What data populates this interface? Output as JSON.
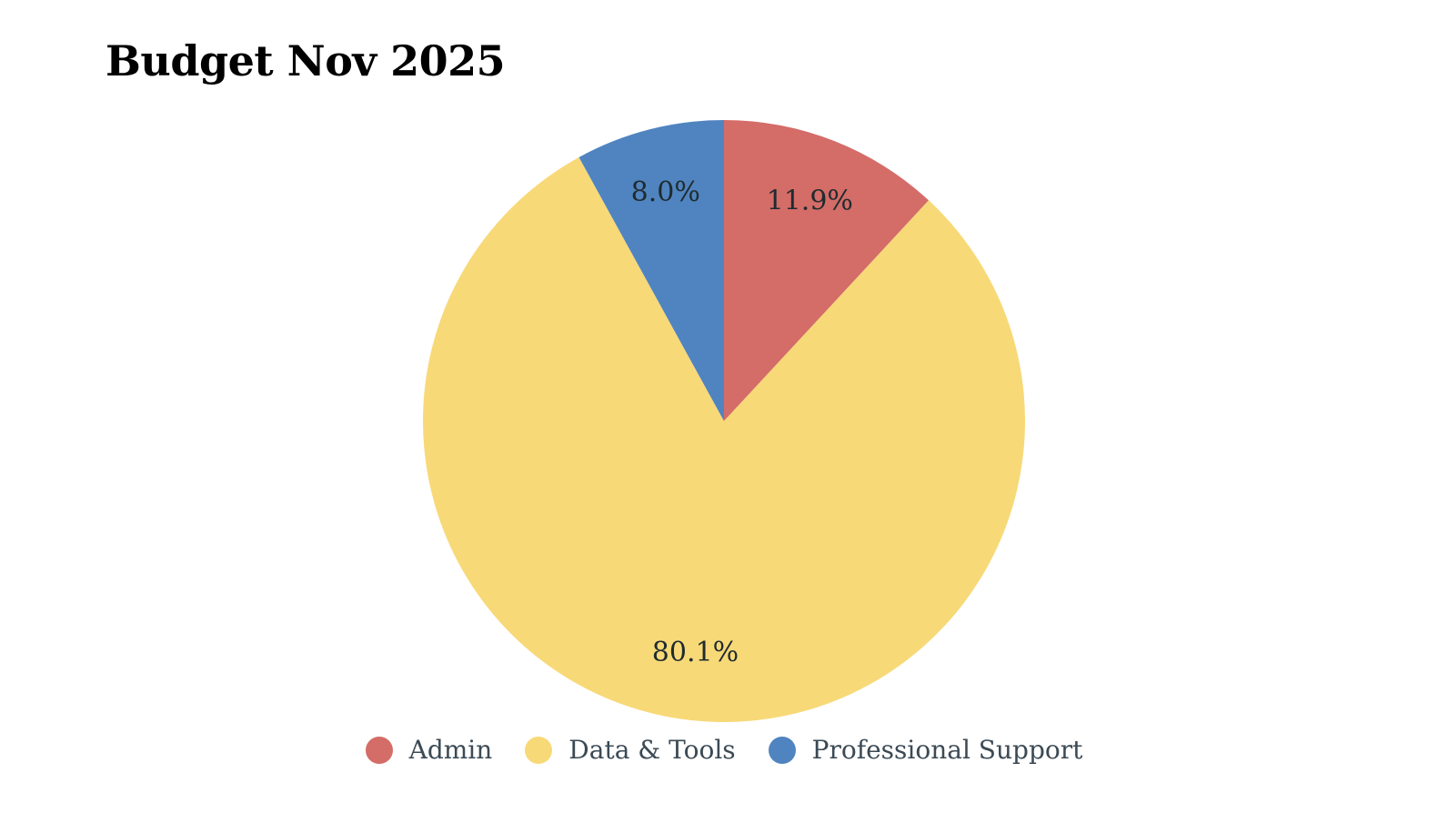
{
  "chart_data": {
    "type": "pie",
    "title": "Budget Nov 2025",
    "slices": [
      {
        "label": "Admin",
        "value": 11.9,
        "display": "11.9%",
        "color": "#d46c68"
      },
      {
        "label": "Data & Tools",
        "value": 80.1,
        "display": "80.1%",
        "color": "#f8d978"
      },
      {
        "label": "Professional Support",
        "value": 8.0,
        "display": "8.0%",
        "color": "#5084c0"
      }
    ],
    "start_angle_deg": 0,
    "direction": "clockwise",
    "legend_position": "bottom"
  }
}
